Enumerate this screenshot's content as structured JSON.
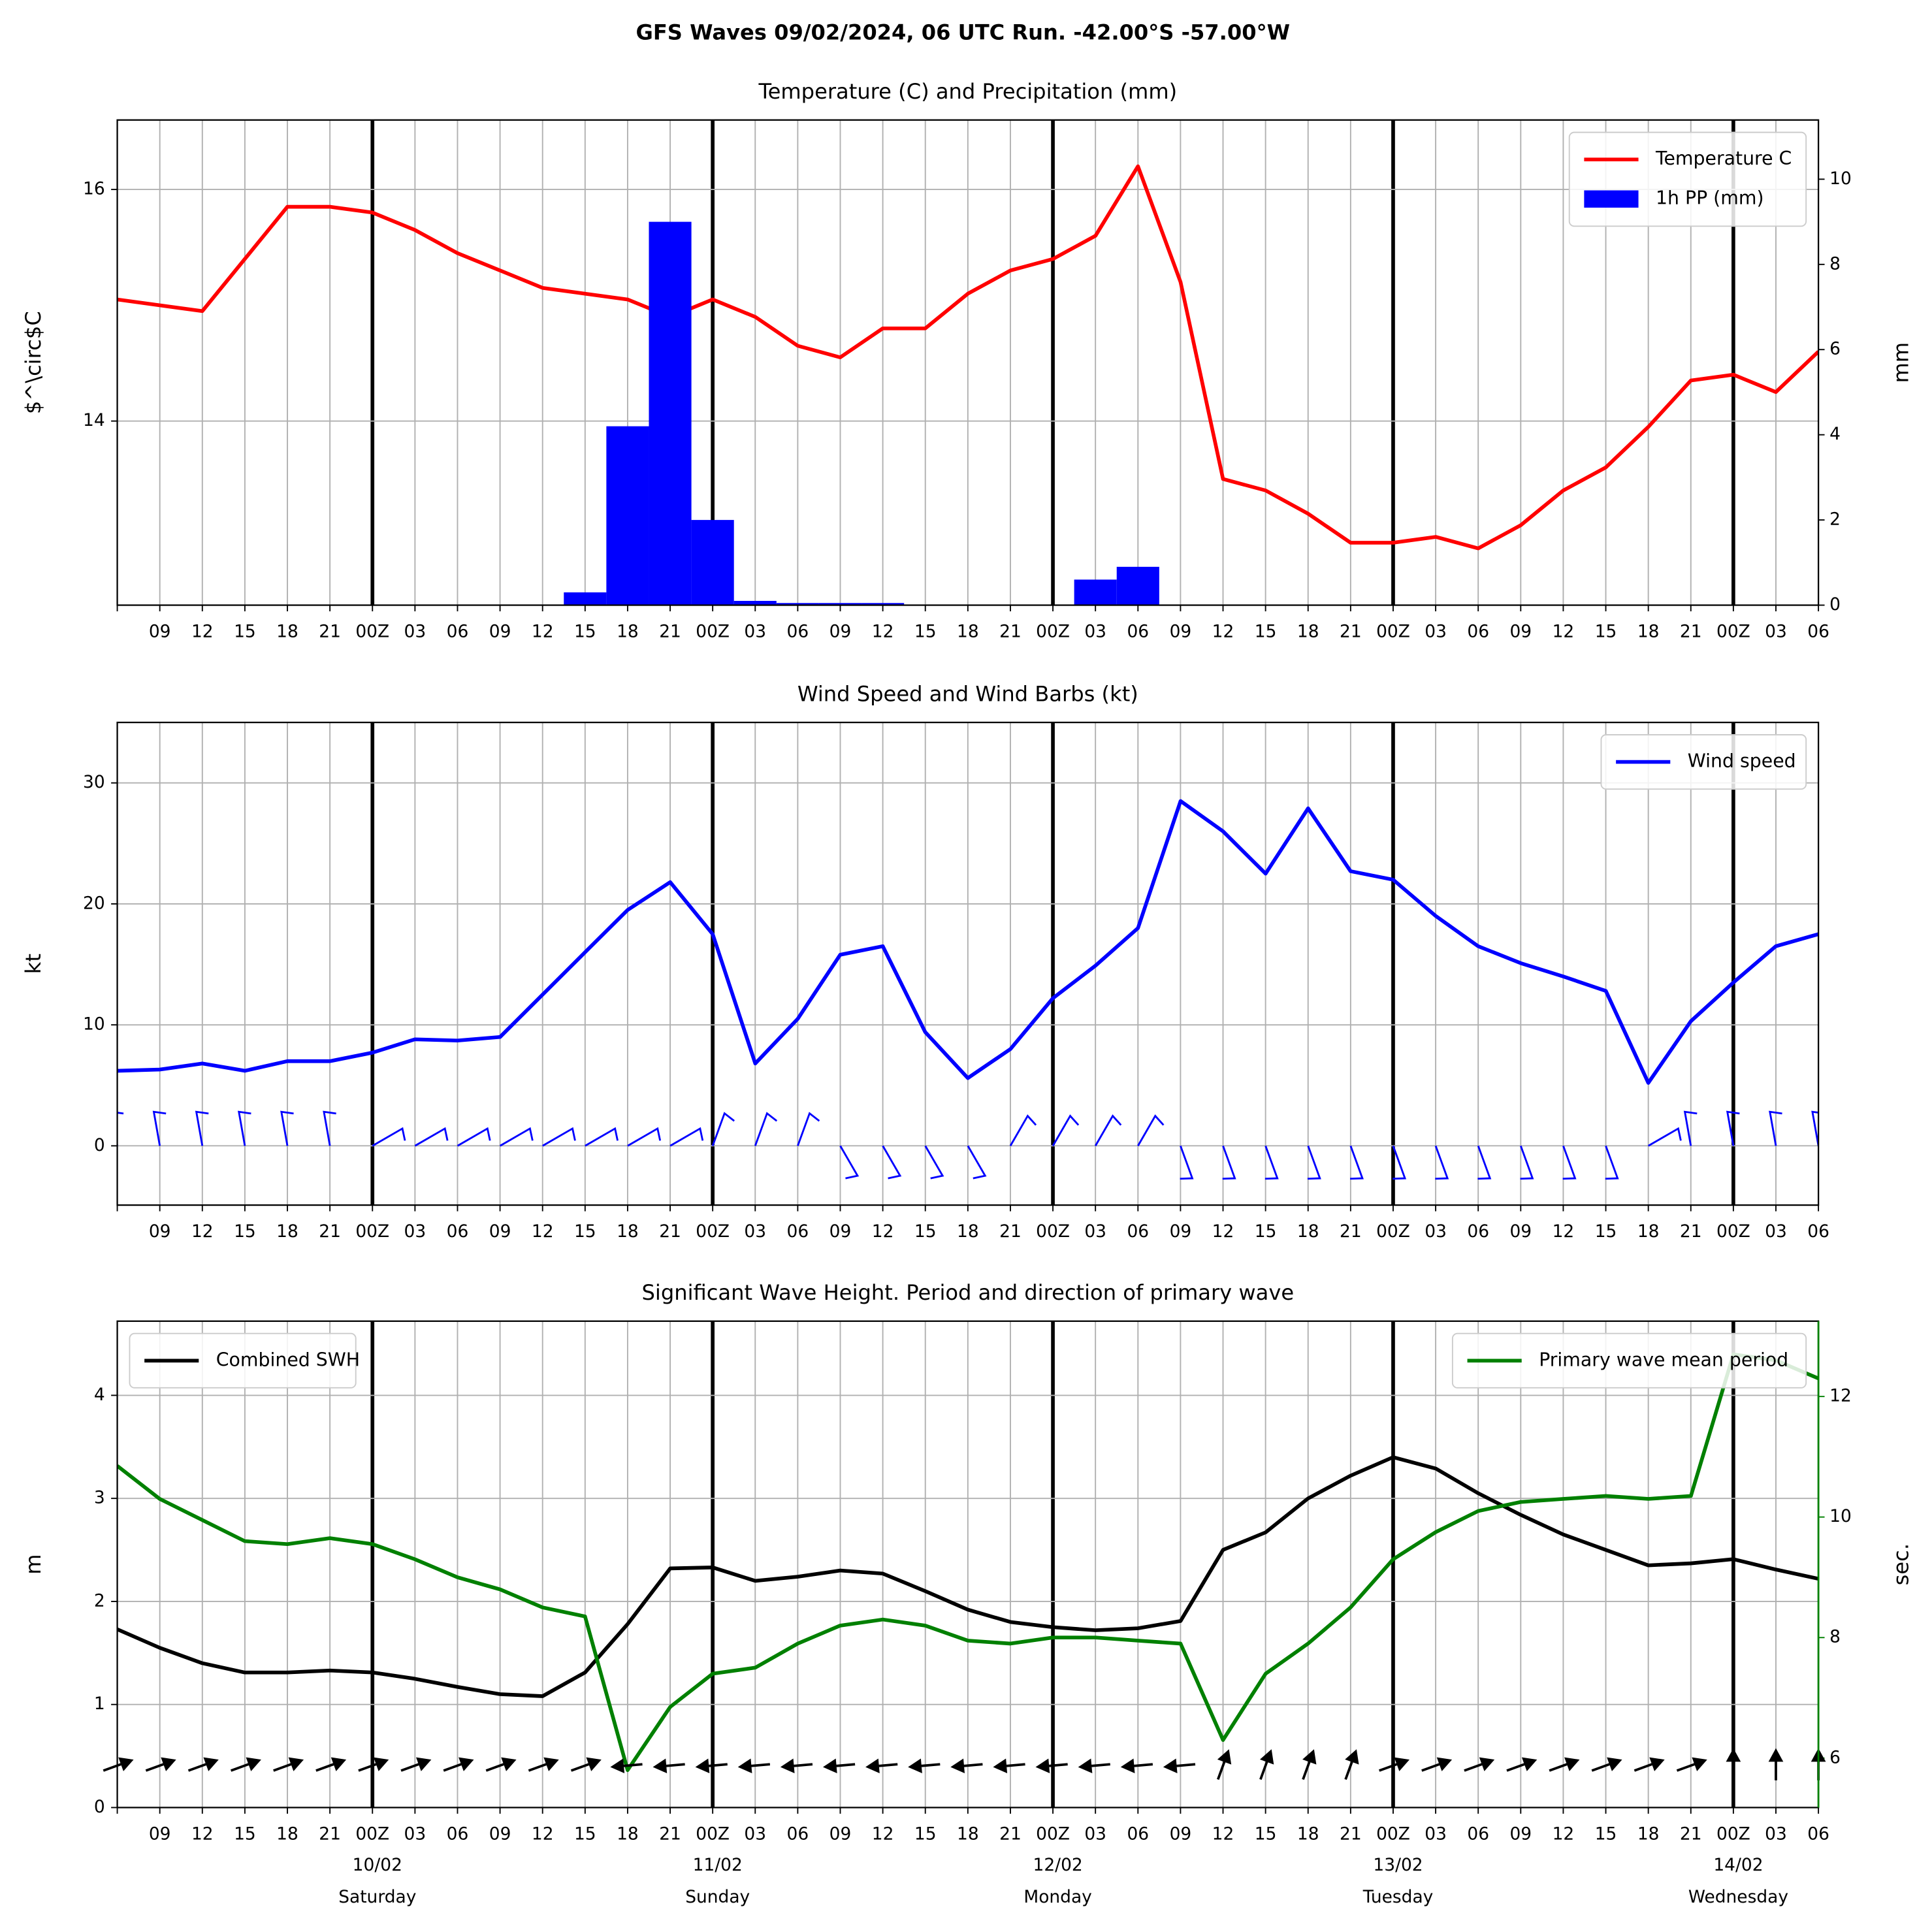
{
  "title": "GFS Waves 09/02/2024, 06 UTC Run. -42.00°S -57.00°W",
  "chart_data": [
    {
      "type": "line",
      "title": "Temperature (C) and Precipitation (mm)",
      "ylabel": "$^\\circ$C",
      "y2label": "mm",
      "categories": [
        null,
        "09",
        "12",
        "15",
        "18",
        "21",
        "00Z",
        "03",
        "06",
        "09",
        "12",
        "15",
        "18",
        "21",
        "00Z",
        "03",
        "06",
        "09",
        "12",
        "15",
        "18",
        "21",
        "00Z",
        "03",
        "06",
        "09",
        "12",
        "15",
        "18",
        "21",
        "00Z",
        "03",
        "06",
        "09",
        "12",
        "15",
        "18",
        "21",
        "00Z",
        "03",
        "06"
      ],
      "ylim": [
        12.41,
        16.6
      ],
      "yticks": [
        14,
        16
      ],
      "y2lim": [
        0,
        11.39
      ],
      "y2ticks": [
        0,
        2,
        4,
        6,
        8,
        10
      ],
      "grid": true,
      "legend": "upper right",
      "series": [
        {
          "name": "Temperature C",
          "type": "line",
          "color": "#ff0000",
          "values": [
            15.05,
            15.0,
            14.95,
            15.4,
            15.85,
            15.85,
            15.8,
            15.65,
            15.45,
            15.3,
            15.15,
            15.1,
            15.05,
            14.9,
            15.05,
            14.9,
            14.65,
            14.55,
            14.8,
            14.8,
            15.1,
            15.3,
            15.4,
            15.6,
            16.2,
            15.2,
            13.5,
            13.4,
            13.2,
            12.95,
            12.95,
            13.0,
            12.9,
            13.1,
            13.4,
            13.6,
            13.95,
            14.35,
            14.4,
            14.25,
            14.6
          ]
        },
        {
          "name": "1h PP (mm)",
          "type": "bar",
          "axis": "y2",
          "color": "#0000ff",
          "values": [
            0,
            0,
            0,
            0,
            0,
            0,
            0,
            0,
            0,
            0,
            0,
            0.3,
            4.2,
            9.0,
            2.0,
            0.1,
            0.05,
            0.05,
            0.05,
            0,
            0,
            0,
            0,
            0.6,
            0.9,
            0,
            0,
            0,
            0,
            0,
            0,
            0,
            0,
            0,
            0,
            0,
            0,
            0,
            0,
            0,
            0
          ]
        }
      ]
    },
    {
      "type": "line",
      "title": "Wind Speed and Wind Barbs (kt)",
      "ylabel": "kt",
      "categories": [
        null,
        "09",
        "12",
        "15",
        "18",
        "21",
        "00Z",
        "03",
        "06",
        "09",
        "12",
        "15",
        "18",
        "21",
        "00Z",
        "03",
        "06",
        "09",
        "12",
        "15",
        "18",
        "21",
        "00Z",
        "03",
        "06",
        "09",
        "12",
        "15",
        "18",
        "21",
        "00Z",
        "03",
        "06",
        "09",
        "12",
        "15",
        "18",
        "21",
        "00Z",
        "03",
        "06"
      ],
      "ylim": [
        -4.9,
        35
      ],
      "yticks": [
        0,
        10,
        20,
        30
      ],
      "grid": true,
      "legend": "upper right",
      "series": [
        {
          "name": "Wind speed",
          "type": "line",
          "color": "#0000ff",
          "values": [
            6.2,
            6.3,
            6.8,
            6.2,
            7.0,
            7.0,
            7.7,
            8.8,
            8.7,
            9.0,
            12.5,
            16.0,
            19.5,
            21.8,
            17.5,
            6.8,
            10.5,
            15.8,
            16.5,
            9.4,
            5.6,
            8.0,
            12.2,
            14.9,
            18.0,
            28.5,
            26.0,
            22.5,
            27.9,
            22.7,
            22.0,
            19.0,
            16.5,
            15.1,
            14.0,
            12.8,
            5.2,
            10.3,
            13.5,
            16.5,
            17.5
          ]
        }
      ],
      "barbs": {
        "color": "#0000ff",
        "directions": [
          350,
          350,
          350,
          350,
          350,
          350,
          60,
          60,
          60,
          60,
          60,
          60,
          60,
          60,
          20,
          20,
          20,
          150,
          150,
          150,
          150,
          30,
          30,
          30,
          30,
          160,
          160,
          160,
          160,
          160,
          160,
          160,
          160,
          160,
          160,
          160,
          60,
          350,
          350,
          350,
          350
        ]
      }
    },
    {
      "type": "line",
      "title": "Significant Wave Height. Period and direction of primary wave",
      "ylabel": "m",
      "y2label": "sec.",
      "y2color": "#008000",
      "categories": [
        null,
        "09",
        "12",
        "15",
        "18",
        "21",
        "00Z",
        "03",
        "06",
        "09",
        "12",
        "15",
        "18",
        "21",
        "00Z",
        "03",
        "06",
        "09",
        "12",
        "15",
        "18",
        "21",
        "00Z",
        "03",
        "06",
        "09",
        "12",
        "15",
        "18",
        "21",
        "00Z",
        "03",
        "06",
        "09",
        "12",
        "15",
        "18",
        "21",
        "00Z",
        "03",
        "06"
      ],
      "dates": [
        null,
        null,
        null,
        null,
        null,
        null,
        "10/02",
        null,
        null,
        null,
        null,
        null,
        null,
        null,
        "11/02",
        null,
        null,
        null,
        null,
        null,
        null,
        null,
        "12/02",
        null,
        null,
        null,
        null,
        null,
        null,
        null,
        "13/02",
        null,
        null,
        null,
        null,
        null,
        null,
        null,
        "14/02",
        null,
        null
      ],
      "weekdays": [
        null,
        null,
        null,
        null,
        null,
        null,
        "Saturday",
        null,
        null,
        null,
        null,
        null,
        null,
        null,
        "Sunday",
        null,
        null,
        null,
        null,
        null,
        null,
        null,
        "Monday",
        null,
        null,
        null,
        null,
        null,
        null,
        null,
        "Tuesday",
        null,
        null,
        null,
        null,
        null,
        null,
        null,
        "Wednesday",
        null,
        null
      ],
      "ylim": [
        0,
        4.72
      ],
      "yticks": [
        0,
        1,
        2,
        3,
        4
      ],
      "y2lim": [
        5.18,
        13.25
      ],
      "y2ticks": [
        6,
        8,
        10,
        12
      ],
      "grid": true,
      "series": [
        {
          "name": "Combined SWH",
          "type": "line",
          "color": "#000000",
          "legend": "upper left",
          "values": [
            1.73,
            1.55,
            1.4,
            1.31,
            1.31,
            1.33,
            1.31,
            1.25,
            1.17,
            1.1,
            1.08,
            1.31,
            1.78,
            2.32,
            2.33,
            2.2,
            2.24,
            2.3,
            2.27,
            2.1,
            1.92,
            1.8,
            1.75,
            1.72,
            1.74,
            1.81,
            2.5,
            2.67,
            3.0,
            3.22,
            3.4,
            3.29,
            3.05,
            2.84,
            2.65,
            2.5,
            2.35,
            2.37,
            2.41,
            2.31,
            2.22
          ]
        },
        {
          "name": "Primary wave mean period",
          "type": "line",
          "axis": "y2",
          "color": "#008000",
          "legend": "upper right",
          "values": [
            10.85,
            10.3,
            9.95,
            9.6,
            9.55,
            9.65,
            9.55,
            9.3,
            9.0,
            8.8,
            8.5,
            8.35,
            5.8,
            6.85,
            7.4,
            7.5,
            7.9,
            8.2,
            8.3,
            8.2,
            7.95,
            7.9,
            8.0,
            8.0,
            7.95,
            7.9,
            6.3,
            7.4,
            7.9,
            8.5,
            9.3,
            9.75,
            10.1,
            10.25,
            10.3,
            10.35,
            10.3,
            10.35,
            12.7,
            12.6,
            12.3
          ]
        }
      ],
      "arrows": {
        "color": "#000000",
        "directions": [
          70,
          70,
          70,
          70,
          70,
          70,
          70,
          70,
          70,
          70,
          70,
          70,
          265,
          265,
          265,
          265,
          265,
          265,
          265,
          265,
          265,
          265,
          265,
          265,
          265,
          265,
          20,
          20,
          20,
          20,
          70,
          70,
          70,
          70,
          70,
          70,
          70,
          70,
          0,
          0,
          0
        ]
      }
    }
  ]
}
